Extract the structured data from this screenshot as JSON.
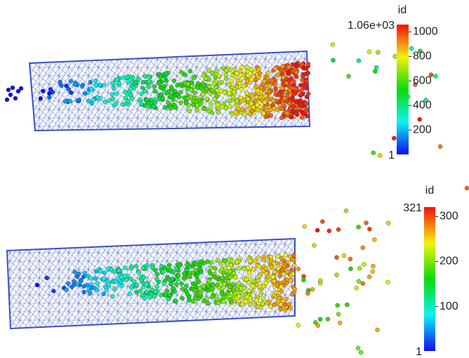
{
  "panels": [
    {
      "colorbar": {
        "title": "id",
        "max": {
          "value": 1060,
          "label": "1.06e+03"
        },
        "min": 1,
        "ticks": [
          200,
          400,
          600,
          800,
          1000
        ]
      }
    },
    {
      "colorbar": {
        "title": "id",
        "max": 321,
        "min": 1,
        "ticks": [
          100,
          200,
          300
        ]
      }
    }
  ]
}
